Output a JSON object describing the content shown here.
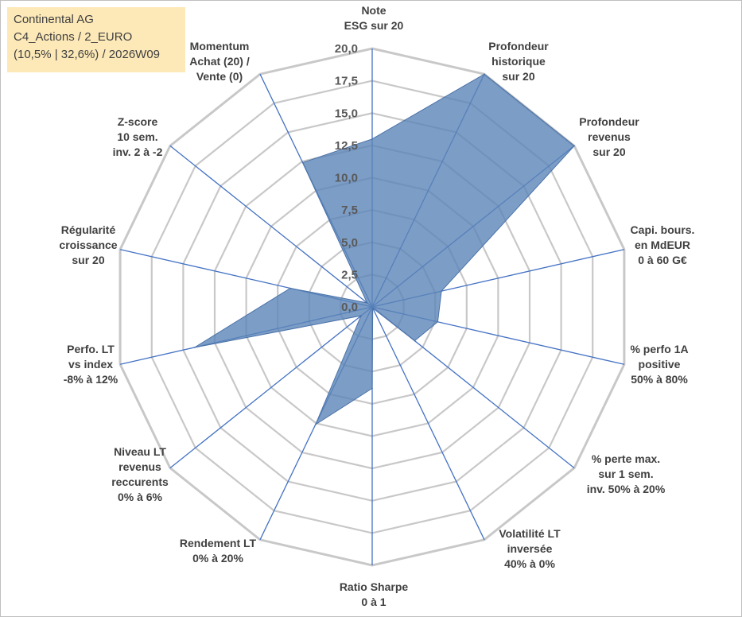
{
  "title_box": {
    "line1": "Continental AG",
    "line2": "C4_Actions / 2_EURO",
    "line3": "(10,5% | 32,6%) / 2026W09",
    "background": "#fde9b8"
  },
  "chart_data": {
    "type": "radar",
    "rmin": 0,
    "rmax": 20,
    "ticks": [
      "0,0",
      "2,5",
      "5,0",
      "7,5",
      "10,0",
      "12,5",
      "15,0",
      "17,5",
      "20,0"
    ],
    "grid": true,
    "colors": {
      "fill": "#5b84b8",
      "fill_opacity": 0.8,
      "spokes": "#4472c4",
      "grid": "#c8c8c8"
    },
    "axes": [
      {
        "label": [
          "Note",
          "ESG sur 20"
        ]
      },
      {
        "label": [
          "Profondeur",
          "historique",
          "sur 20"
        ]
      },
      {
        "label": [
          "Profondeur",
          "revenus",
          "sur 20"
        ]
      },
      {
        "label": [
          "Capi. bours.",
          "en MdEUR",
          "0 à 60 G€"
        ]
      },
      {
        "label": [
          "% perfo 1A",
          "positive",
          "50% à 80%"
        ]
      },
      {
        "label": [
          "% perte max.",
          "sur 1 sem.",
          "inv. 50% à 20%"
        ]
      },
      {
        "label": [
          "Volatilité LT",
          "inversée",
          "40% à 0%"
        ]
      },
      {
        "label": [
          "Ratio Sharpe",
          "0 à 1"
        ]
      },
      {
        "label": [
          "Rendement LT",
          "0% à 20%"
        ]
      },
      {
        "label": [
          "Niveau LT",
          "revenus",
          "reccurents",
          "0% à 6%"
        ]
      },
      {
        "label": [
          "Perfo. LT",
          "vs index",
          "-8% à 12%"
        ]
      },
      {
        "label": [
          "Régularité",
          "croissance",
          "sur 20"
        ]
      },
      {
        "label": [
          "Z-score",
          "10 sem.",
          "inv. 2 à -2"
        ]
      },
      {
        "label": [
          "Momentum",
          "Achat (20) /",
          "Vente (0)"
        ]
      }
    ],
    "series": [
      {
        "values": [
          13,
          20,
          20,
          5.5,
          5.2,
          4.2,
          0.1,
          6.3,
          10.1,
          1.1,
          14.1,
          6.5,
          0.5,
          12.4
        ]
      }
    ]
  }
}
